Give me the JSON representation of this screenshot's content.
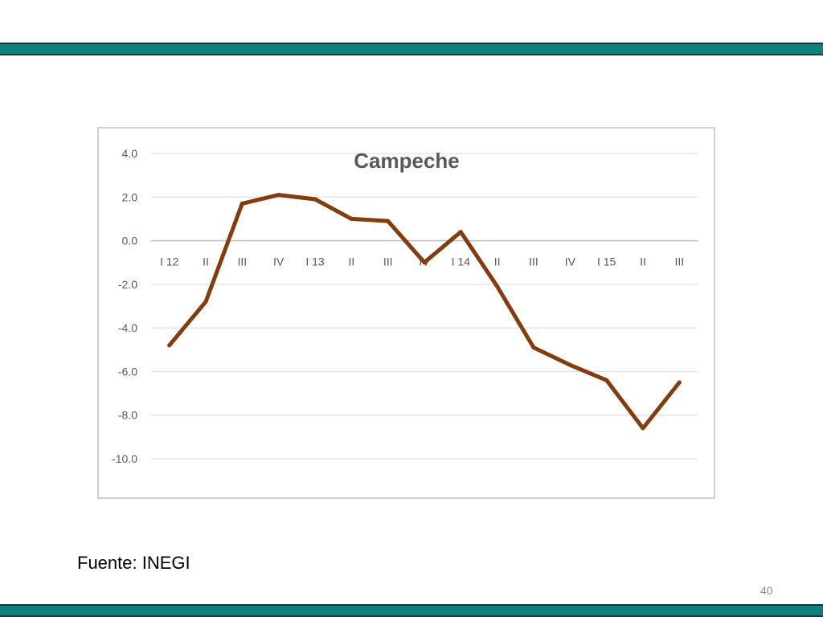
{
  "slide": {
    "source": "Fuente: INEGI",
    "page_number": "40",
    "band_color": "#0f8080"
  },
  "chart_data": {
    "type": "line",
    "title": "Campeche",
    "xlabel": "",
    "ylabel": "",
    "categories": [
      "I 12",
      "II",
      "III",
      "IV",
      "I 13",
      "II",
      "III",
      "IV",
      "I 14",
      "II",
      "III",
      "IV",
      "I 15",
      "II",
      "III"
    ],
    "series": [
      {
        "color": "#843c0c",
        "values": [
          -4.8,
          -2.8,
          1.7,
          2.1,
          1.9,
          1.0,
          0.9,
          -1.0,
          0.4,
          -2.1,
          -4.9,
          -5.7,
          -6.4,
          -8.6,
          -6.5
        ]
      }
    ],
    "yticks": [
      "4.0",
      "2.0",
      "0.0",
      "-2.0",
      "-4.0",
      "-6.0",
      "-8.0",
      "-10.0"
    ],
    "ylim": [
      -10,
      4
    ],
    "grid": true,
    "legend": "none"
  }
}
